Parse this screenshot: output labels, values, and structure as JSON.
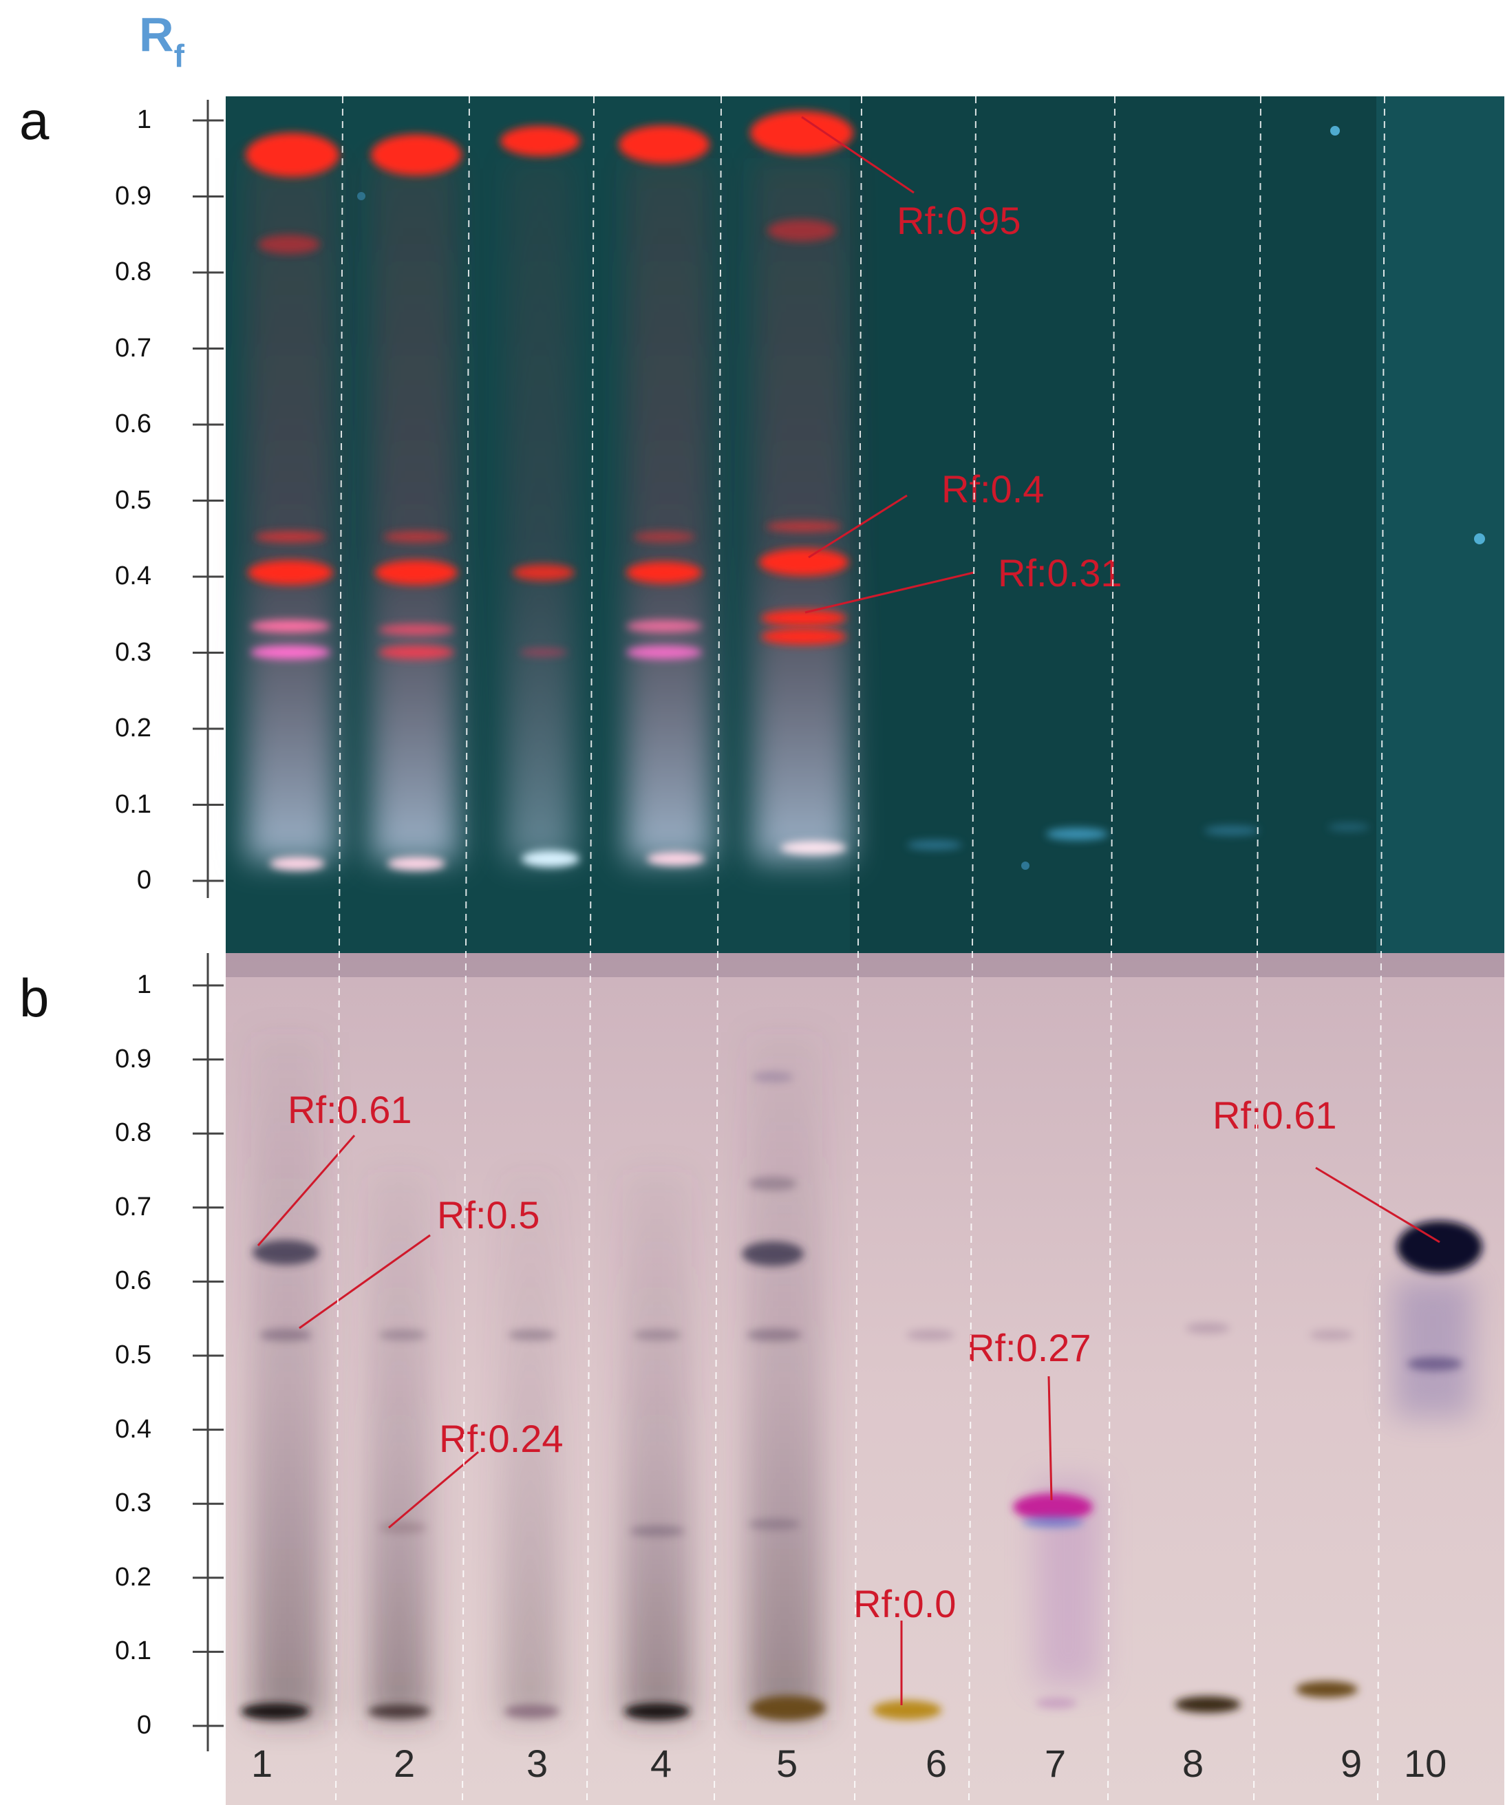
{
  "header": {
    "rf_main": "R",
    "rf_sub": "f"
  },
  "panels": {
    "a": {
      "letter": "a",
      "axis_ticks": [
        "1",
        "0.9",
        "0.8",
        "0.7",
        "0.6",
        "0.5",
        "0.4",
        "0.3",
        "0.2",
        "0.1",
        "0"
      ],
      "annotations": [
        "Rf:0.95",
        "Rf:0.4",
        "Rf:0.31"
      ]
    },
    "b": {
      "letter": "b",
      "axis_ticks": [
        "1",
        "0.9",
        "0.8",
        "0.7",
        "0.6",
        "0.5",
        "0.4",
        "0.3",
        "0.2",
        "0.1",
        "0"
      ],
      "annotations": [
        "Rf:0.61",
        "Rf:0.5",
        "Rf:0.24",
        "Rf:0.0",
        "Rf:0.27",
        "Rf:0.61"
      ]
    }
  },
  "lanes": [
    "1",
    "2",
    "3",
    "4",
    "5",
    "6",
    "7",
    "8",
    "9",
    "10"
  ],
  "colors": {
    "plate_a_bg": "#11474a",
    "plate_b_bg": "#d9c4c8",
    "band_red": "#ff2a1a",
    "annotation_red": "#d0192b",
    "rf_blue": "#5b9bd5"
  }
}
